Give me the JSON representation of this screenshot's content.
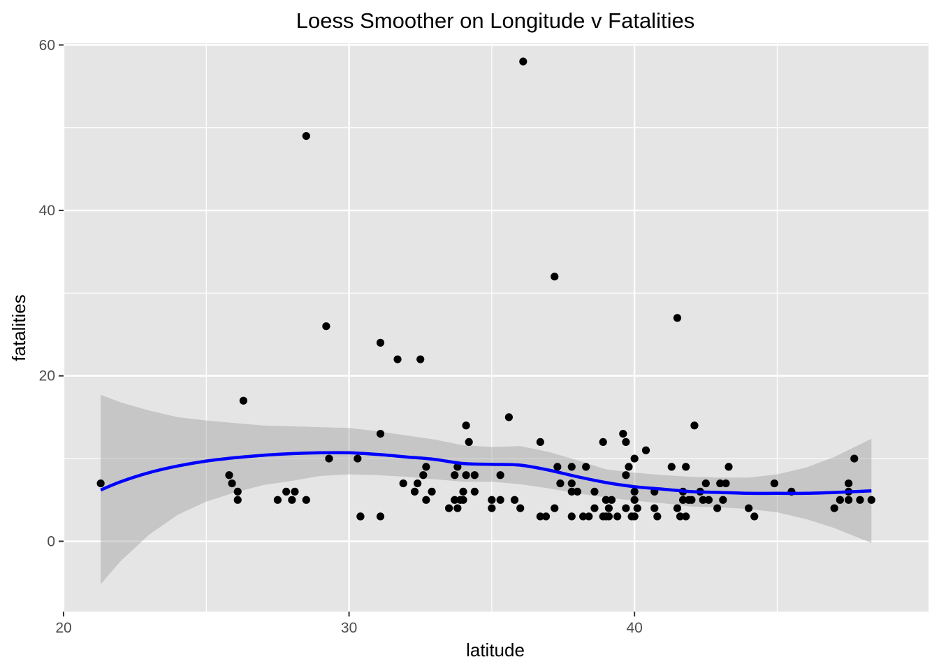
{
  "chart_data": {
    "type": "scatter",
    "title": "Loess Smoother on Longitude v Fatalities",
    "xlabel": "latitude",
    "ylabel": "fatalities",
    "xlim": [
      20,
      50.3
    ],
    "ylim": [
      -8.5,
      60.2
    ],
    "x_ticks": [
      20,
      30,
      40
    ],
    "y_ticks": [
      0,
      20,
      40,
      60
    ],
    "x_minor_ticks": [
      25,
      35,
      45
    ],
    "y_minor_ticks": [
      10,
      30,
      50
    ],
    "grid": true,
    "background_color": "#e5e5e5",
    "grid_color": "#ffffff",
    "point_color": "#000000",
    "smoother_color": "#0000ff",
    "ribbon_color": "#999999",
    "points": [
      {
        "x": 21.3,
        "y": 7
      },
      {
        "x": 25.8,
        "y": 8
      },
      {
        "x": 25.9,
        "y": 7
      },
      {
        "x": 26.1,
        "y": 6
      },
      {
        "x": 26.1,
        "y": 5
      },
      {
        "x": 26.3,
        "y": 17
      },
      {
        "x": 27.5,
        "y": 5
      },
      {
        "x": 27.8,
        "y": 6
      },
      {
        "x": 28.0,
        "y": 5
      },
      {
        "x": 28.1,
        "y": 6
      },
      {
        "x": 28.5,
        "y": 49
      },
      {
        "x": 28.5,
        "y": 5
      },
      {
        "x": 29.2,
        "y": 26
      },
      {
        "x": 29.3,
        "y": 10
      },
      {
        "x": 30.3,
        "y": 10
      },
      {
        "x": 30.4,
        "y": 3
      },
      {
        "x": 30.4,
        "y": 3
      },
      {
        "x": 31.1,
        "y": 24
      },
      {
        "x": 31.1,
        "y": 13
      },
      {
        "x": 31.1,
        "y": 3
      },
      {
        "x": 31.7,
        "y": 22
      },
      {
        "x": 31.9,
        "y": 7
      },
      {
        "x": 32.3,
        "y": 6
      },
      {
        "x": 32.4,
        "y": 7
      },
      {
        "x": 32.5,
        "y": 22
      },
      {
        "x": 32.6,
        "y": 8
      },
      {
        "x": 32.7,
        "y": 5
      },
      {
        "x": 32.7,
        "y": 9
      },
      {
        "x": 32.9,
        "y": 6
      },
      {
        "x": 33.5,
        "y": 4
      },
      {
        "x": 33.7,
        "y": 8
      },
      {
        "x": 33.7,
        "y": 5
      },
      {
        "x": 33.8,
        "y": 9
      },
      {
        "x": 33.8,
        "y": 4
      },
      {
        "x": 33.9,
        "y": 5
      },
      {
        "x": 34.0,
        "y": 6
      },
      {
        "x": 34.0,
        "y": 5
      },
      {
        "x": 34.1,
        "y": 14
      },
      {
        "x": 34.1,
        "y": 8
      },
      {
        "x": 34.2,
        "y": 12
      },
      {
        "x": 34.4,
        "y": 6
      },
      {
        "x": 34.4,
        "y": 8
      },
      {
        "x": 35.0,
        "y": 5
      },
      {
        "x": 35.0,
        "y": 4
      },
      {
        "x": 35.3,
        "y": 8
      },
      {
        "x": 35.3,
        "y": 5
      },
      {
        "x": 35.6,
        "y": 15
      },
      {
        "x": 35.8,
        "y": 5
      },
      {
        "x": 36.1,
        "y": 58
      },
      {
        "x": 36.0,
        "y": 4
      },
      {
        "x": 36.7,
        "y": 12
      },
      {
        "x": 36.7,
        "y": 3
      },
      {
        "x": 36.9,
        "y": 3
      },
      {
        "x": 37.2,
        "y": 32
      },
      {
        "x": 37.2,
        "y": 4
      },
      {
        "x": 37.3,
        "y": 9
      },
      {
        "x": 37.4,
        "y": 7
      },
      {
        "x": 37.8,
        "y": 9
      },
      {
        "x": 37.8,
        "y": 7
      },
      {
        "x": 37.8,
        "y": 6
      },
      {
        "x": 37.8,
        "y": 3
      },
      {
        "x": 38.0,
        "y": 6
      },
      {
        "x": 38.2,
        "y": 3
      },
      {
        "x": 38.3,
        "y": 9
      },
      {
        "x": 38.4,
        "y": 3
      },
      {
        "x": 38.6,
        "y": 6
      },
      {
        "x": 38.6,
        "y": 4
      },
      {
        "x": 38.9,
        "y": 12
      },
      {
        "x": 38.9,
        "y": 3
      },
      {
        "x": 39.0,
        "y": 5
      },
      {
        "x": 39.0,
        "y": 3
      },
      {
        "x": 39.1,
        "y": 4
      },
      {
        "x": 39.1,
        "y": 3
      },
      {
        "x": 39.2,
        "y": 5
      },
      {
        "x": 39.4,
        "y": 3
      },
      {
        "x": 39.6,
        "y": 13
      },
      {
        "x": 39.7,
        "y": 12
      },
      {
        "x": 39.7,
        "y": 8
      },
      {
        "x": 39.7,
        "y": 4
      },
      {
        "x": 39.8,
        "y": 9
      },
      {
        "x": 39.9,
        "y": 3
      },
      {
        "x": 40.0,
        "y": 10
      },
      {
        "x": 40.0,
        "y": 6
      },
      {
        "x": 40.0,
        "y": 5
      },
      {
        "x": 40.0,
        "y": 3
      },
      {
        "x": 40.1,
        "y": 4
      },
      {
        "x": 40.4,
        "y": 11
      },
      {
        "x": 40.7,
        "y": 6
      },
      {
        "x": 40.7,
        "y": 4
      },
      {
        "x": 40.8,
        "y": 3
      },
      {
        "x": 41.3,
        "y": 9
      },
      {
        "x": 41.5,
        "y": 27
      },
      {
        "x": 41.5,
        "y": 4
      },
      {
        "x": 41.6,
        "y": 3
      },
      {
        "x": 41.7,
        "y": 6
      },
      {
        "x": 41.7,
        "y": 5
      },
      {
        "x": 41.8,
        "y": 9
      },
      {
        "x": 41.8,
        "y": 3
      },
      {
        "x": 41.9,
        "y": 5
      },
      {
        "x": 42.0,
        "y": 5
      },
      {
        "x": 42.1,
        "y": 14
      },
      {
        "x": 42.3,
        "y": 6
      },
      {
        "x": 42.4,
        "y": 5
      },
      {
        "x": 42.5,
        "y": 7
      },
      {
        "x": 42.6,
        "y": 5
      },
      {
        "x": 42.9,
        "y": 4
      },
      {
        "x": 43.0,
        "y": 7
      },
      {
        "x": 43.1,
        "y": 5
      },
      {
        "x": 43.2,
        "y": 7
      },
      {
        "x": 43.3,
        "y": 9
      },
      {
        "x": 44.0,
        "y": 4
      },
      {
        "x": 44.2,
        "y": 3
      },
      {
        "x": 44.9,
        "y": 7
      },
      {
        "x": 45.5,
        "y": 6
      },
      {
        "x": 47.0,
        "y": 4
      },
      {
        "x": 47.2,
        "y": 5
      },
      {
        "x": 47.5,
        "y": 5
      },
      {
        "x": 47.5,
        "y": 7
      },
      {
        "x": 47.5,
        "y": 6
      },
      {
        "x": 47.7,
        "y": 10
      },
      {
        "x": 47.9,
        "y": 5
      },
      {
        "x": 48.3,
        "y": 5
      }
    ],
    "smoother": {
      "method": "loess",
      "x": [
        21.3,
        22,
        23,
        24,
        25,
        26,
        27,
        28,
        29,
        30,
        31,
        32,
        33,
        34,
        35,
        36,
        37,
        38,
        39,
        40,
        41,
        42,
        43,
        44,
        45,
        46,
        47,
        48.3
      ],
      "y": [
        6.2,
        7.2,
        8.3,
        9.1,
        9.7,
        10.1,
        10.4,
        10.6,
        10.7,
        10.7,
        10.5,
        10.2,
        9.9,
        9.4,
        9.3,
        9.2,
        8.6,
        7.8,
        7.1,
        6.6,
        6.3,
        6.0,
        5.9,
        5.8,
        5.8,
        5.8,
        5.9,
        6.1
      ],
      "upper": [
        17.7,
        16.8,
        15.8,
        15.0,
        14.6,
        14.3,
        14.0,
        13.9,
        13.8,
        13.7,
        13.3,
        12.8,
        12.3,
        11.6,
        11.4,
        11.5,
        10.8,
        9.8,
        8.7,
        8.3,
        8.0,
        7.8,
        7.7,
        7.7,
        8.1,
        8.9,
        10.2,
        12.4
      ],
      "lower": [
        -5.2,
        -2.4,
        0.8,
        3.2,
        4.8,
        5.9,
        6.8,
        7.3,
        7.9,
        8.1,
        8.0,
        7.8,
        7.5,
        7.2,
        7.2,
        6.9,
        6.4,
        5.8,
        5.3,
        4.9,
        4.6,
        4.2,
        4.1,
        3.9,
        3.5,
        2.7,
        1.6,
        -0.2
      ]
    }
  }
}
